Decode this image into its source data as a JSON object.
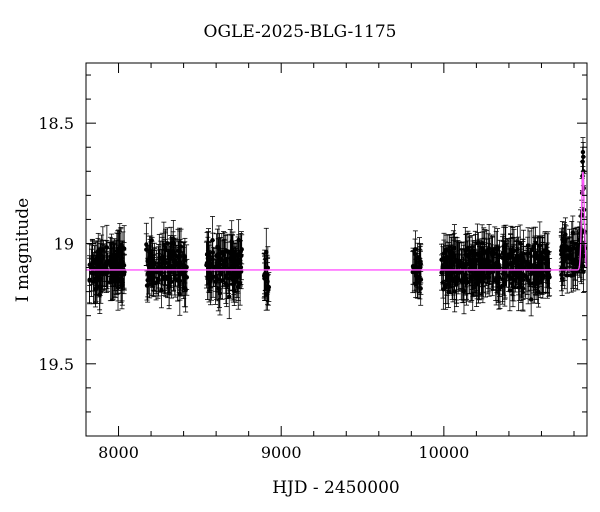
{
  "chart_data": {
    "type": "scatter",
    "title": "OGLE-2025-BLG-1175",
    "xlabel": "HJD - 2450000",
    "ylabel": "I magnitude",
    "xlim": [
      7800,
      10880
    ],
    "ylim": [
      19.8,
      18.25
    ],
    "y_inverted": true,
    "grid": false,
    "legend": "none",
    "x_ticks": [
      8000,
      9000,
      10000
    ],
    "x_tick_labels": [
      "8000",
      "9000",
      "10000"
    ],
    "y_ticks": [
      18.5,
      19,
      19.5
    ],
    "y_tick_labels": [
      "18.5",
      "19",
      "19.5"
    ],
    "baseline_mag": 19.11,
    "series": [
      {
        "kind": "observations",
        "color": "#000000",
        "seasons": [
          {
            "x_start": 7820,
            "x_end": 8040,
            "mean_mag": 19.1,
            "scatter": 0.09,
            "err": 0.08
          },
          {
            "x_start": 8170,
            "x_end": 8420,
            "mean_mag": 19.1,
            "scatter": 0.09,
            "err": 0.08
          },
          {
            "x_start": 8540,
            "x_end": 8760,
            "mean_mag": 19.1,
            "scatter": 0.1,
            "err": 0.08
          },
          {
            "x_start": 8895,
            "x_end": 8925,
            "mean_mag": 19.12,
            "scatter": 0.1,
            "err": 0.08
          },
          {
            "x_start": 9805,
            "x_end": 9860,
            "mean_mag": 19.1,
            "scatter": 0.08,
            "err": 0.07
          },
          {
            "x_start": 9985,
            "x_end": 10350,
            "mean_mag": 19.1,
            "scatter": 0.09,
            "err": 0.08
          },
          {
            "x_start": 10360,
            "x_end": 10650,
            "mean_mag": 19.1,
            "scatter": 0.09,
            "err": 0.08
          },
          {
            "x_start": 10720,
            "x_end": 10860,
            "mean_mag": 19.05,
            "scatter": 0.09,
            "err": 0.07
          }
        ],
        "event_points": [
          {
            "x": 10846,
            "y": 18.95
          },
          {
            "x": 10848,
            "y": 18.88
          },
          {
            "x": 10850,
            "y": 18.79
          },
          {
            "x": 10852,
            "y": 18.72
          },
          {
            "x": 10853,
            "y": 18.66
          },
          {
            "x": 10855,
            "y": 18.62
          },
          {
            "x": 10857,
            "y": 18.64
          },
          {
            "x": 10858,
            "y": 18.7
          },
          {
            "x": 10860,
            "y": 18.77
          },
          {
            "x": 10862,
            "y": 18.86
          },
          {
            "x": 10864,
            "y": 18.95
          },
          {
            "x": 10866,
            "y": 19.02
          }
        ]
      },
      {
        "kind": "model",
        "color": "#ff55ff",
        "t0": 10855,
        "tE": 12,
        "peak_mag": 18.7
      }
    ]
  }
}
